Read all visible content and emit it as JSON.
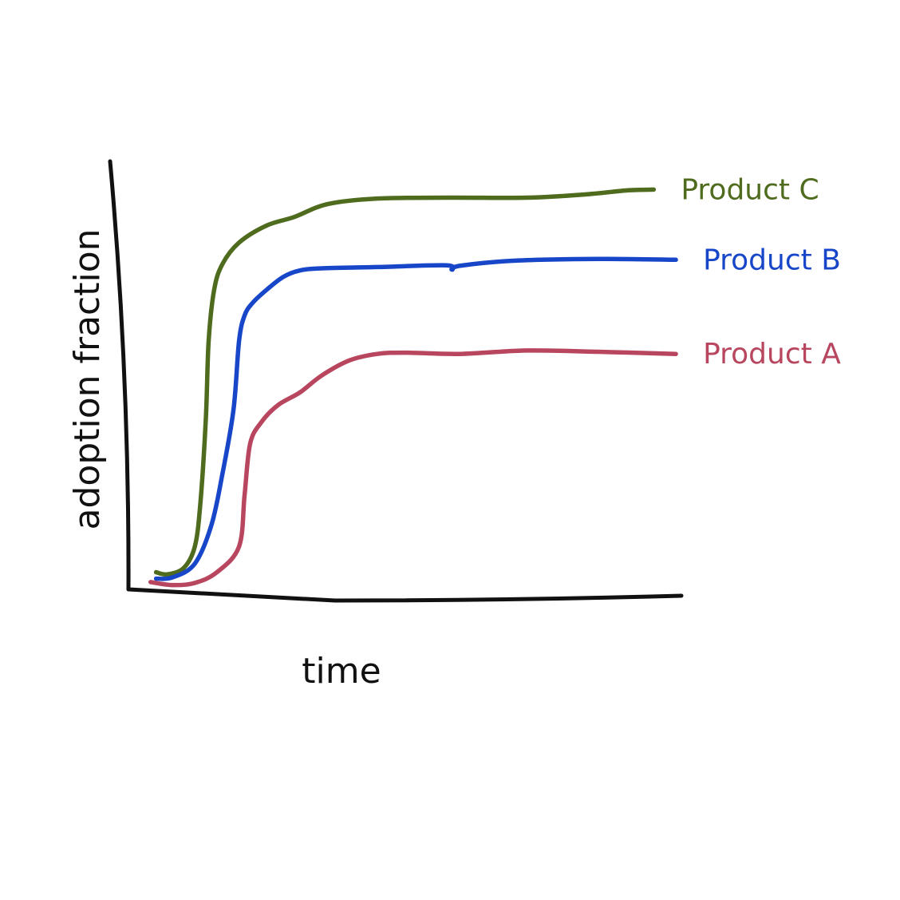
{
  "chart_data": {
    "type": "line",
    "title": "",
    "xlabel": "time",
    "ylabel": "adoption fraction",
    "xlim": [
      0,
      100
    ],
    "ylim": [
      0,
      100
    ],
    "grid": false,
    "legend_placement": "right-end-of-lines",
    "series": [
      {
        "name": "Product C",
        "color": "#4e6b1e",
        "x": [
          5,
          7,
          10,
          12,
          13,
          14,
          14.5,
          15.5,
          17,
          20,
          25,
          30,
          36,
          45,
          58,
          72,
          83,
          90,
          95
        ],
        "y": [
          4,
          3.5,
          5,
          10,
          20,
          40,
          58,
          70,
          76,
          81,
          85,
          87,
          90,
          91.3,
          91.5,
          91.5,
          92.3,
          93.2,
          93.4
        ]
      },
      {
        "name": "Product B",
        "color": "#1846c8",
        "x": [
          5,
          8,
          12,
          15,
          17,
          19,
          20,
          21,
          22.5,
          25,
          28,
          31,
          35,
          45,
          57.5,
          58.5,
          60,
          70,
          85,
          99
        ],
        "y": [
          2.5,
          2.8,
          6,
          15,
          27,
          42,
          58,
          64,
          67,
          70,
          73,
          74.5,
          75,
          75.3,
          75.7,
          74.7,
          75.6,
          76.8,
          77.2,
          77
        ]
      },
      {
        "name": "Product A",
        "color": "#b8465f",
        "x": [
          4,
          8,
          12,
          16,
          20,
          21,
          22,
          24,
          27,
          31,
          35,
          40,
          45,
          50,
          60,
          72,
          85,
          99
        ],
        "y": [
          1.7,
          1,
          1.5,
          4,
          10,
          22,
          34,
          39,
          43,
          46,
          50,
          53.5,
          55,
          55.3,
          55,
          55.8,
          55.5,
          55
        ]
      }
    ]
  }
}
